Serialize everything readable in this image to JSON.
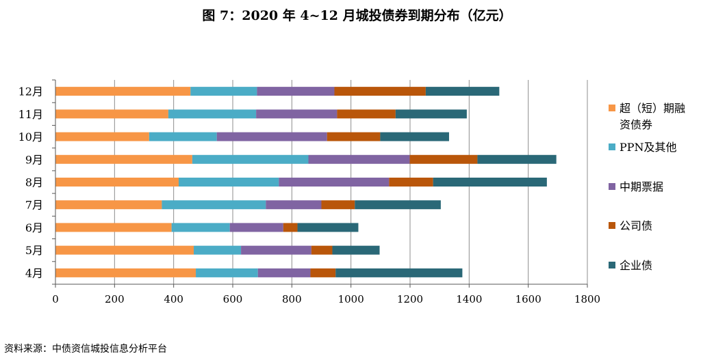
{
  "title": "图 7：2020 年 4~12 月城投债券到期分布（亿元）",
  "source": "资料来源：中债资信城投信息分析平台",
  "chart_data": {
    "type": "bar",
    "orientation": "horizontal",
    "stacked": true,
    "title": "图 7：2020 年 4~12 月城投债券到期分布（亿元）",
    "xlabel": "",
    "ylabel": "",
    "xlim": [
      0,
      1800
    ],
    "xticks": [
      "0",
      "200",
      "400",
      "600",
      "800",
      "1000",
      "1200",
      "1400",
      "1600",
      "1800"
    ],
    "categories": [
      "12月",
      "11月",
      "10月",
      "9月",
      "8月",
      "7月",
      "6月",
      "5月",
      "4月"
    ],
    "series": [
      {
        "name": "超（短）期融资债券",
        "legend_lines": [
          "超（短）期融",
          "资债券"
        ],
        "color": "#F79646",
        "values": [
          457,
          382,
          317,
          463,
          417,
          360,
          393,
          468,
          475
        ]
      },
      {
        "name": "PPN及其他",
        "legend_lines": [
          "PPN及其他"
        ],
        "color": "#4BACC6",
        "values": [
          225,
          297,
          229,
          393,
          339,
          352,
          197,
          160,
          210
        ]
      },
      {
        "name": "中期票据",
        "legend_lines": [
          "中期票据"
        ],
        "color": "#8064A2",
        "values": [
          262,
          274,
          373,
          343,
          373,
          188,
          181,
          238,
          178
        ]
      },
      {
        "name": "公司债",
        "legend_lines": [
          "公司债"
        ],
        "color": "#B9560A",
        "values": [
          309,
          198,
          180,
          229,
          149,
          113,
          48,
          71,
          85
        ]
      },
      {
        "name": "企业债",
        "legend_lines": [
          "企业债"
        ],
        "color": "#2A6877",
        "values": [
          249,
          241,
          233,
          267,
          385,
          291,
          206,
          160,
          429
        ]
      }
    ],
    "grid": true,
    "legend_position": "right"
  }
}
